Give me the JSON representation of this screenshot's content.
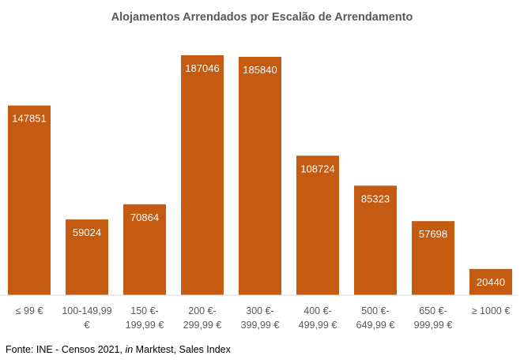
{
  "chart_data": {
    "type": "bar",
    "title": "Alojamentos Arrendados por Escalão de Arrendamento",
    "xlabel": "",
    "ylabel": "",
    "categories": [
      [
        "≤ 99 €"
      ],
      [
        "100-149,99",
        "€"
      ],
      [
        "150 €-",
        "199,99 €"
      ],
      [
        "200 €-",
        "299,99 €"
      ],
      [
        "300 €-",
        "399,99 €"
      ],
      [
        "400 €-",
        "499,99 €"
      ],
      [
        "500 €-",
        "649,99 €"
      ],
      [
        "650 €-",
        "999,99 €"
      ],
      [
        "≥ 1000 €"
      ]
    ],
    "values": [
      147851,
      59024,
      70864,
      187046,
      185840,
      108724,
      85323,
      57698,
      20440
    ],
    "ylim": [
      0,
      200000
    ],
    "grid": false,
    "legend": "none",
    "bar_color": "#C55A11",
    "data_labels": true
  },
  "source": {
    "prefix": "Fonte: INE - Censos 2021, ",
    "italic": "in",
    "suffix": " Marktest, Sales Index"
  }
}
